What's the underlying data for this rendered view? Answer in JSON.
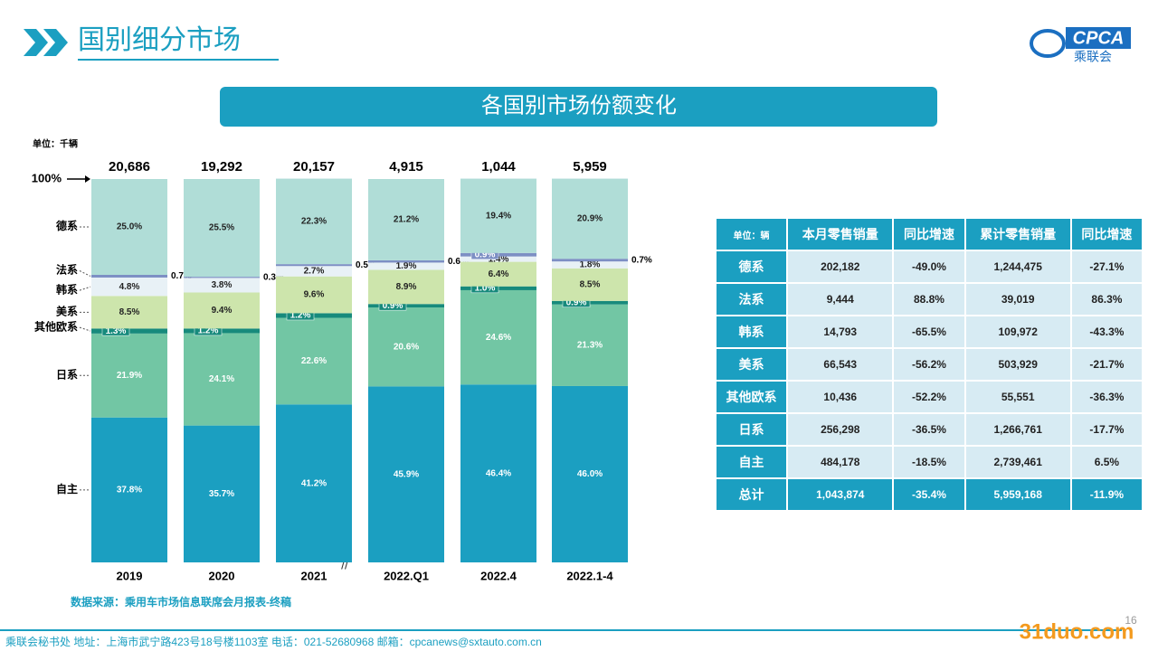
{
  "header": {
    "title": "国别细分市场",
    "logo": "CPCA",
    "logo_sub": "乘联会"
  },
  "chart_data": {
    "type": "stacked-bar",
    "title": "各国别市场份额变化",
    "unit": "单位：千辆",
    "categories": [
      "2019",
      "2020",
      "2021",
      "2022.Q1",
      "2022.4",
      "2022.1-4"
    ],
    "totals": {
      "values": [
        20686,
        19292,
        20157,
        4915,
        1044,
        5959
      ],
      "value_labels": [
        "20,686",
        "19,292",
        "20,157",
        "4,915",
        "1,044",
        "5,959"
      ]
    },
    "ylim": [
      0,
      100
    ],
    "yticks": [
      {
        "value": 100,
        "label": "100%"
      }
    ],
    "series": [
      {
        "name": "自主",
        "color": "#1b9fc1",
        "values": [
          37.8,
          35.7,
          41.2,
          45.9,
          46.4,
          46.0
        ],
        "value_labels": [
          "37.8%",
          "35.7%",
          "41.2%",
          "45.9%",
          "46.4%",
          "46.0%"
        ]
      },
      {
        "name": "日系",
        "color": "#72c6a4",
        "values": [
          21.9,
          24.1,
          22.6,
          20.6,
          24.6,
          21.3
        ],
        "value_labels": [
          "21.9%",
          "24.1%",
          "22.6%",
          "20.6%",
          "24.6%",
          "21.3%"
        ]
      },
      {
        "name": "其他欧系",
        "color": "#178a7c",
        "values": [
          1.3,
          1.2,
          1.2,
          0.9,
          1.0,
          0.9
        ],
        "value_labels": [
          "1.3%",
          "1.2%",
          "1.2%",
          "0.9%",
          "1.0%",
          "0.9%"
        ]
      },
      {
        "name": "美系",
        "color": "#cde5ac",
        "values": [
          8.5,
          9.4,
          9.6,
          8.9,
          6.4,
          8.5
        ],
        "value_labels": [
          "8.5%",
          "9.4%",
          "9.6%",
          "8.9%",
          "6.4%",
          "8.5%"
        ]
      },
      {
        "name": "韩系",
        "color": "#e8f1f6",
        "values": [
          4.8,
          3.8,
          2.7,
          1.9,
          1.4,
          1.8
        ],
        "value_labels": [
          "4.8%",
          "3.8%",
          "2.7%",
          "1.9%",
          "1.4%",
          "1.8%"
        ]
      },
      {
        "name": "法系",
        "color": "#7d8fc4",
        "values": [
          0.7,
          0.3,
          0.5,
          0.6,
          0.9,
          0.7
        ],
        "value_labels": [
          "0.7%",
          "0.3%",
          "0.5%",
          "0.6%",
          "0.9%",
          "0.7%"
        ]
      },
      {
        "name": "德系",
        "color": "#b0ddd7",
        "values": [
          25.0,
          25.5,
          22.3,
          21.2,
          19.4,
          20.9
        ],
        "value_labels": [
          "25.0%",
          "25.5%",
          "22.3%",
          "21.2%",
          "19.4%",
          "20.9%"
        ]
      }
    ],
    "source": "数据来源：乘用车市场信息联席会月报表-终稿"
  },
  "table": {
    "header": [
      "单位：辆",
      "本月零售销量",
      "同比增速",
      "累计零售销量",
      "同比增速"
    ],
    "rows": [
      [
        "德系",
        "202,182",
        "-49.0%",
        "1,244,475",
        "-27.1%"
      ],
      [
        "法系",
        "9,444",
        "88.8%",
        "39,019",
        "86.3%"
      ],
      [
        "韩系",
        "14,793",
        "-65.5%",
        "109,972",
        "-43.3%"
      ],
      [
        "美系",
        "66,543",
        "-56.2%",
        "503,929",
        "-21.7%"
      ],
      [
        "其他欧系",
        "10,436",
        "-52.2%",
        "55,551",
        "-36.3%"
      ],
      [
        "日系",
        "256,298",
        "-36.5%",
        "1,266,761",
        "-17.7%"
      ],
      [
        "自主",
        "484,178",
        "-18.5%",
        "2,739,461",
        "6.5%"
      ]
    ],
    "total": [
      "总计",
      "1,043,874",
      "-35.4%",
      "5,959,168",
      "-11.9%"
    ]
  },
  "footer": {
    "contact": "乘联会秘书处  地址：上海市武宁路423号18号楼1103室  电话：021-52680968  邮箱：cpcanews@sxtauto.com.cn",
    "page": "16",
    "watermark": "31duo.com"
  }
}
